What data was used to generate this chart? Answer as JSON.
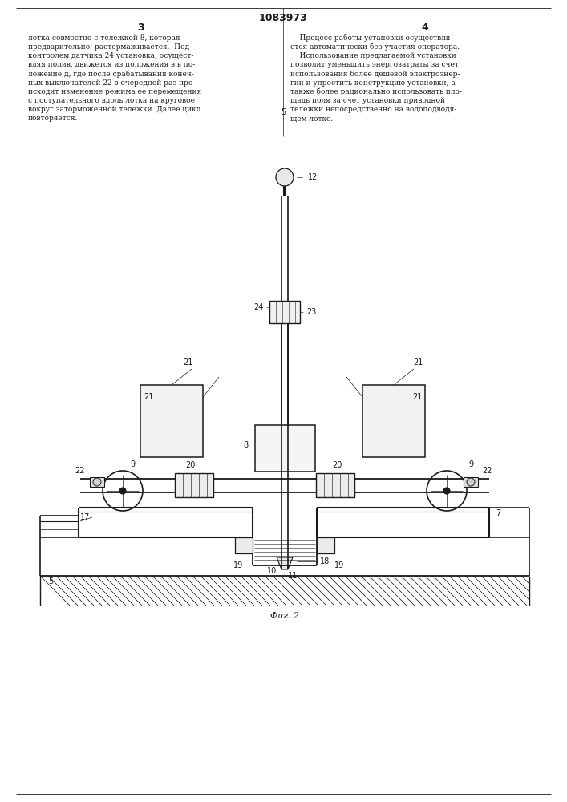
{
  "page_width": 7.07,
  "page_height": 10.0,
  "bg_color": "#ffffff",
  "lc": "#1a1a1a",
  "tc": "#1a1a1a",
  "patent_number": "1083973",
  "page_left": "3",
  "page_right": "4",
  "fig_caption": "Фиг. 2",
  "left_col": [
    "лотка совместно с тележкой 8, которая",
    "предварительно  растормаживается.  Под",
    "контролем датчика 24 установка, осущест-",
    "вляя полив, движется из положения в в по-",
    "ложение д, где после срабатывания конеч-",
    "ных выключателей 22 в очередной раз про-",
    "исходит изменение режима ее перемещения",
    "с поступательного вдоль лотка на круговое",
    "вокруг заторможенной тележки. Далее цикл",
    "повторяется."
  ],
  "right_col": [
    "    Процесс работы установки осуществля-",
    "ется автоматически без участия оператора.",
    "    Использование предлагаемой установки",
    "позволит уменьшить энергозатраты за счет",
    "использования более дешевой электроэнер-",
    "гии и упростить конструкцию установки, а",
    "также более рационально использовать пло-",
    "щадь поля за счет установки приводной",
    "тележки непосредственно на водоподводя-",
    "щем лотке."
  ]
}
